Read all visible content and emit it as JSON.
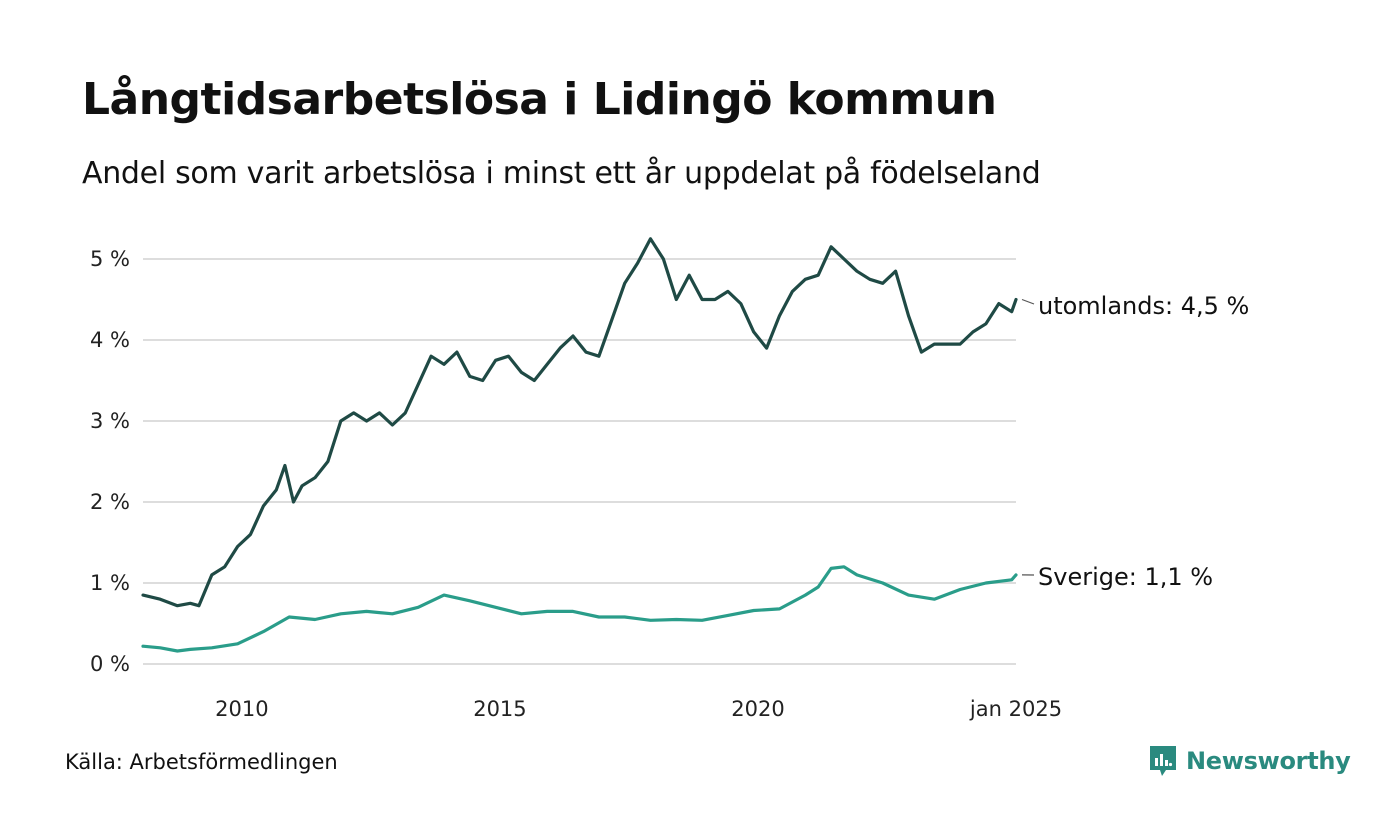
{
  "title": "Långtidsarbetslösa i Lidingö kommun",
  "subtitle": "Andel som varit arbetslösa i minst ett år uppdelat på födelseland",
  "source": "Källa: Arbetsförmedlingen",
  "brand": "Newsworthy",
  "colors": {
    "utomlands": "#1f4a45",
    "sverige": "#2a9d8a",
    "grid": "#dddddd",
    "brand": "#2a8a7f"
  },
  "chart_data": {
    "type": "line",
    "title": "Långtidsarbetslösa i Lidingö kommun",
    "subtitle": "Andel som varit arbetslösa i minst ett år uppdelat på födelseland",
    "ylabel": "",
    "ylim": [
      0,
      5
    ],
    "yticks": [
      0,
      1,
      2,
      3,
      4,
      5
    ],
    "ytick_labels": [
      "0 %",
      "1 %",
      "2 %",
      "3 %",
      "4 %",
      "5 %"
    ],
    "xlim": [
      "2008-02",
      "2025-01"
    ],
    "xticks": [
      "2010-01",
      "2015-01",
      "2020-01",
      "2025-01"
    ],
    "xtick_labels": [
      "2010",
      "2015",
      "2020",
      "jan 2025"
    ],
    "grid": "horizontal",
    "series": [
      {
        "name": "utomlands",
        "label": "utomlands: 4,5 %",
        "color": "#1f4a45",
        "x": [
          "2008-02",
          "2008-06",
          "2008-10",
          "2009-01",
          "2009-03",
          "2009-06",
          "2009-09",
          "2009-12",
          "2010-03",
          "2010-06",
          "2010-09",
          "2010-11",
          "2011-01",
          "2011-03",
          "2011-06",
          "2011-09",
          "2011-12",
          "2012-03",
          "2012-06",
          "2012-09",
          "2012-12",
          "2013-03",
          "2013-06",
          "2013-09",
          "2013-12",
          "2014-03",
          "2014-06",
          "2014-09",
          "2014-12",
          "2015-03",
          "2015-06",
          "2015-09",
          "2015-12",
          "2016-03",
          "2016-06",
          "2016-09",
          "2016-12",
          "2017-03",
          "2017-06",
          "2017-09",
          "2017-12",
          "2018-03",
          "2018-06",
          "2018-09",
          "2018-12",
          "2019-03",
          "2019-06",
          "2019-09",
          "2019-12",
          "2020-03",
          "2020-06",
          "2020-09",
          "2020-12",
          "2021-03",
          "2021-06",
          "2021-09",
          "2021-12",
          "2022-03",
          "2022-06",
          "2022-09",
          "2022-12",
          "2023-03",
          "2023-06",
          "2023-09",
          "2023-12",
          "2024-03",
          "2024-06",
          "2024-09",
          "2024-12",
          "2025-01"
        ],
        "values": [
          0.85,
          0.8,
          0.72,
          0.75,
          0.72,
          1.1,
          1.2,
          1.45,
          1.6,
          1.95,
          2.15,
          2.45,
          2.0,
          2.2,
          2.3,
          2.5,
          3.0,
          3.1,
          3.0,
          3.1,
          2.95,
          3.1,
          3.45,
          3.8,
          3.7,
          3.85,
          3.55,
          3.5,
          3.75,
          3.8,
          3.6,
          3.5,
          3.7,
          3.9,
          4.05,
          3.85,
          3.8,
          4.25,
          4.7,
          4.95,
          5.25,
          5.0,
          4.5,
          4.8,
          4.5,
          4.5,
          4.6,
          4.45,
          4.1,
          3.9,
          4.3,
          4.6,
          4.75,
          4.8,
          5.15,
          5.0,
          4.85,
          4.75,
          4.7,
          4.85,
          4.3,
          3.85,
          3.95,
          3.95,
          3.95,
          4.1,
          4.2,
          4.45,
          4.35,
          4.5
        ]
      },
      {
        "name": "Sverige",
        "label": "Sverige: 1,1 %",
        "color": "#2a9d8a",
        "x": [
          "2008-02",
          "2008-06",
          "2008-10",
          "2009-01",
          "2009-06",
          "2009-12",
          "2010-06",
          "2010-12",
          "2011-06",
          "2011-12",
          "2012-06",
          "2012-12",
          "2013-06",
          "2013-12",
          "2014-06",
          "2014-12",
          "2015-06",
          "2015-12",
          "2016-06",
          "2016-12",
          "2017-06",
          "2017-12",
          "2018-06",
          "2018-12",
          "2019-06",
          "2019-12",
          "2020-06",
          "2020-12",
          "2021-03",
          "2021-06",
          "2021-09",
          "2021-12",
          "2022-06",
          "2022-12",
          "2023-06",
          "2023-12",
          "2024-06",
          "2024-12",
          "2025-01"
        ],
        "values": [
          0.22,
          0.2,
          0.16,
          0.18,
          0.2,
          0.25,
          0.4,
          0.58,
          0.55,
          0.62,
          0.65,
          0.62,
          0.7,
          0.85,
          0.78,
          0.7,
          0.62,
          0.65,
          0.65,
          0.58,
          0.58,
          0.54,
          0.55,
          0.54,
          0.6,
          0.66,
          0.68,
          0.85,
          0.95,
          1.18,
          1.2,
          1.1,
          1.0,
          0.85,
          0.8,
          0.92,
          1.0,
          1.04,
          1.1
        ]
      }
    ]
  }
}
